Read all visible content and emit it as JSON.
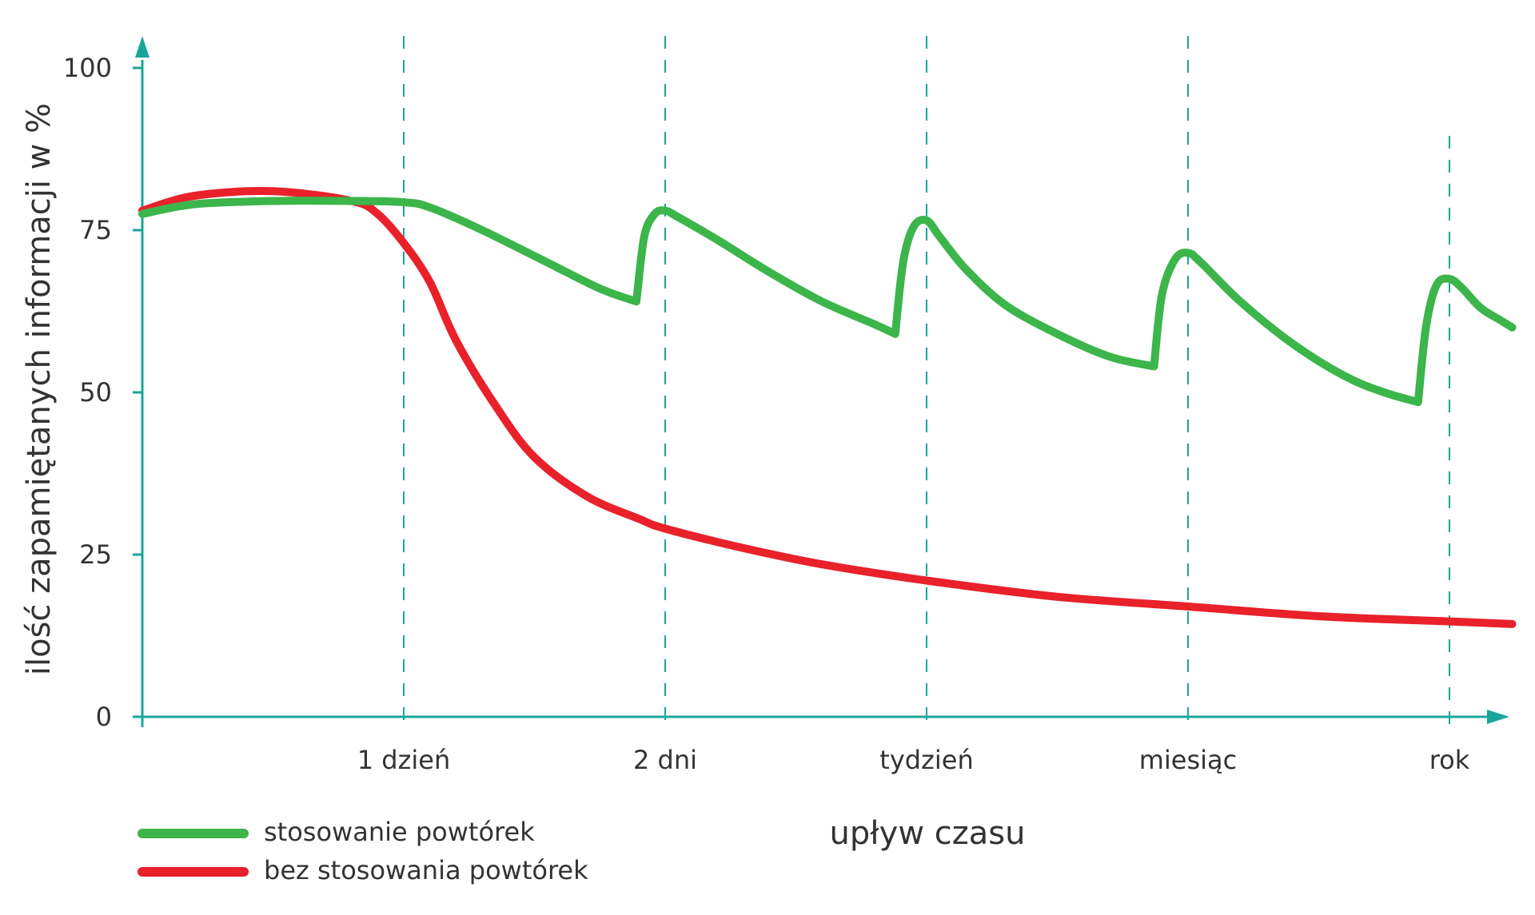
{
  "chart_data": {
    "type": "line",
    "title": "",
    "xlabel": "upływ czasu",
    "ylabel": "ilość zapamiętanych informacji w %",
    "ylim": [
      0,
      100
    ],
    "yticks": [
      0,
      25,
      50,
      75,
      100
    ],
    "grid": "vertical dashed lines at time marks",
    "legend_position": "bottom-left",
    "x_categories": [
      "1 dzień",
      "2 dni",
      "tydzień",
      "miesiąc",
      "rok"
    ],
    "colors": {
      "axis": "#1aa59a",
      "with_repetition": "#3cb54a",
      "without_repetition": "#e8212b"
    },
    "series": [
      {
        "name": "stosowanie powtórek",
        "color": "#3cb54a",
        "points": [
          [
            0,
            77.5
          ],
          [
            0.2,
            79
          ],
          [
            0.5,
            79.5
          ],
          [
            0.8,
            79.5
          ],
          [
            1.0,
            79.3
          ],
          [
            1.1,
            78.5
          ],
          [
            1.3,
            75
          ],
          [
            1.55,
            70
          ],
          [
            1.75,
            66
          ],
          [
            1.89,
            64
          ],
          [
            1.89,
            64
          ],
          [
            1.92,
            74
          ],
          [
            1.96,
            77.5
          ],
          [
            2.0,
            78
          ],
          [
            2.05,
            77
          ],
          [
            2.2,
            73.5
          ],
          [
            2.4,
            68.5
          ],
          [
            2.6,
            64
          ],
          [
            2.8,
            60.5
          ],
          [
            2.88,
            59
          ],
          [
            2.88,
            59
          ],
          [
            2.91,
            70
          ],
          [
            2.95,
            75.5
          ],
          [
            3.0,
            76.5
          ],
          [
            3.05,
            74
          ],
          [
            3.15,
            69
          ],
          [
            3.3,
            63.5
          ],
          [
            3.5,
            59
          ],
          [
            3.7,
            55.5
          ],
          [
            3.87,
            54
          ],
          [
            3.87,
            54
          ],
          [
            3.9,
            65
          ],
          [
            3.95,
            70.5
          ],
          [
            4.0,
            71.5
          ],
          [
            4.05,
            70
          ],
          [
            4.2,
            64
          ],
          [
            4.4,
            57.5
          ],
          [
            4.6,
            52.5
          ],
          [
            4.75,
            50
          ],
          [
            4.88,
            48.5
          ],
          [
            4.88,
            48.5
          ],
          [
            4.91,
            60
          ],
          [
            4.95,
            66.5
          ],
          [
            5.0,
            67.5
          ],
          [
            5.05,
            66
          ],
          [
            5.12,
            63
          ],
          [
            5.2,
            61
          ],
          [
            5.24,
            60
          ]
        ]
      },
      {
        "name": "bez stosowania powtórek",
        "color": "#e8212b",
        "points": [
          [
            0,
            78
          ],
          [
            0.2,
            80.3
          ],
          [
            0.5,
            81
          ],
          [
            0.8,
            79.5
          ],
          [
            0.9,
            77.5
          ],
          [
            1.0,
            73
          ],
          [
            1.1,
            67
          ],
          [
            1.2,
            58
          ],
          [
            1.35,
            48
          ],
          [
            1.5,
            40
          ],
          [
            1.7,
            34
          ],
          [
            1.9,
            30.5
          ],
          [
            2.0,
            29
          ],
          [
            2.3,
            26
          ],
          [
            2.6,
            23.5
          ],
          [
            3.0,
            21
          ],
          [
            3.5,
            18.5
          ],
          [
            4.0,
            17
          ],
          [
            4.5,
            15.5
          ],
          [
            5.0,
            14.7
          ],
          [
            5.24,
            14.3
          ]
        ]
      }
    ]
  }
}
